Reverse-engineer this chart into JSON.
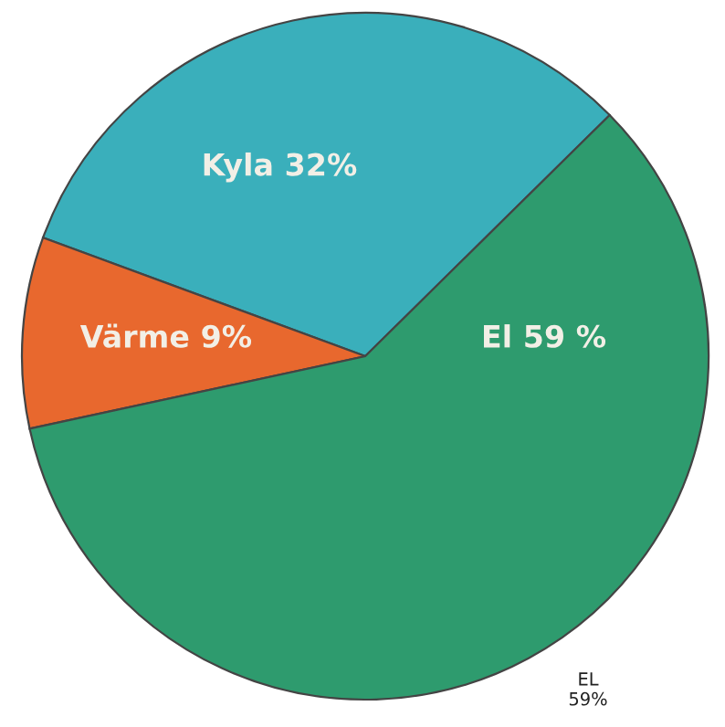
{
  "chart_data": {
    "type": "pie",
    "categories": [
      "Kyla",
      "Värme",
      "El"
    ],
    "values": [
      32,
      9,
      59
    ],
    "colors": [
      "#3aafbb",
      "#e8682e",
      "#2e9b6e"
    ],
    "value_labels": [
      "32%",
      "9%",
      "59 %"
    ],
    "annotations": [
      "EL\n59%"
    ]
  }
}
